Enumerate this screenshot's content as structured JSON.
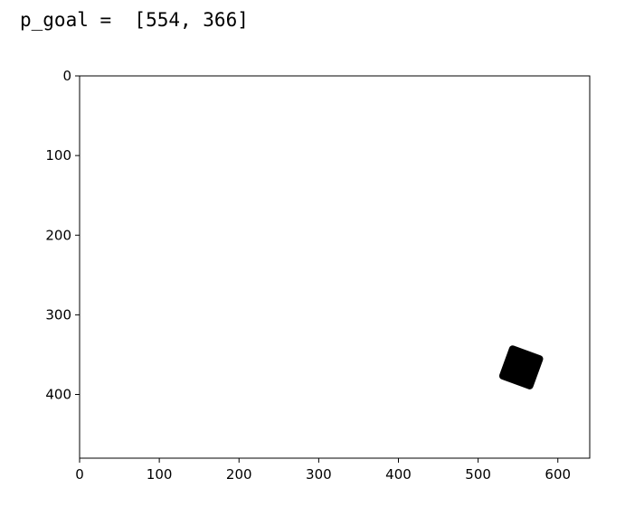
{
  "output": {
    "line": "p_goal =  [554, 366]"
  },
  "chart_data": {
    "type": "image",
    "title": "",
    "xlabel": "",
    "ylabel": "",
    "xlim": [
      0,
      640
    ],
    "ylim": [
      480,
      0
    ],
    "y_axis_inverted": true,
    "grid": false,
    "xticks": [
      0,
      100,
      200,
      300,
      400,
      500,
      600
    ],
    "yticks": [
      0,
      100,
      200,
      300,
      400
    ],
    "background_color": "#ffffff",
    "object": {
      "shape": "rotated-square",
      "color": "#000000",
      "center": [
        554,
        366
      ],
      "side": 45,
      "rotation_deg": 20
    }
  }
}
